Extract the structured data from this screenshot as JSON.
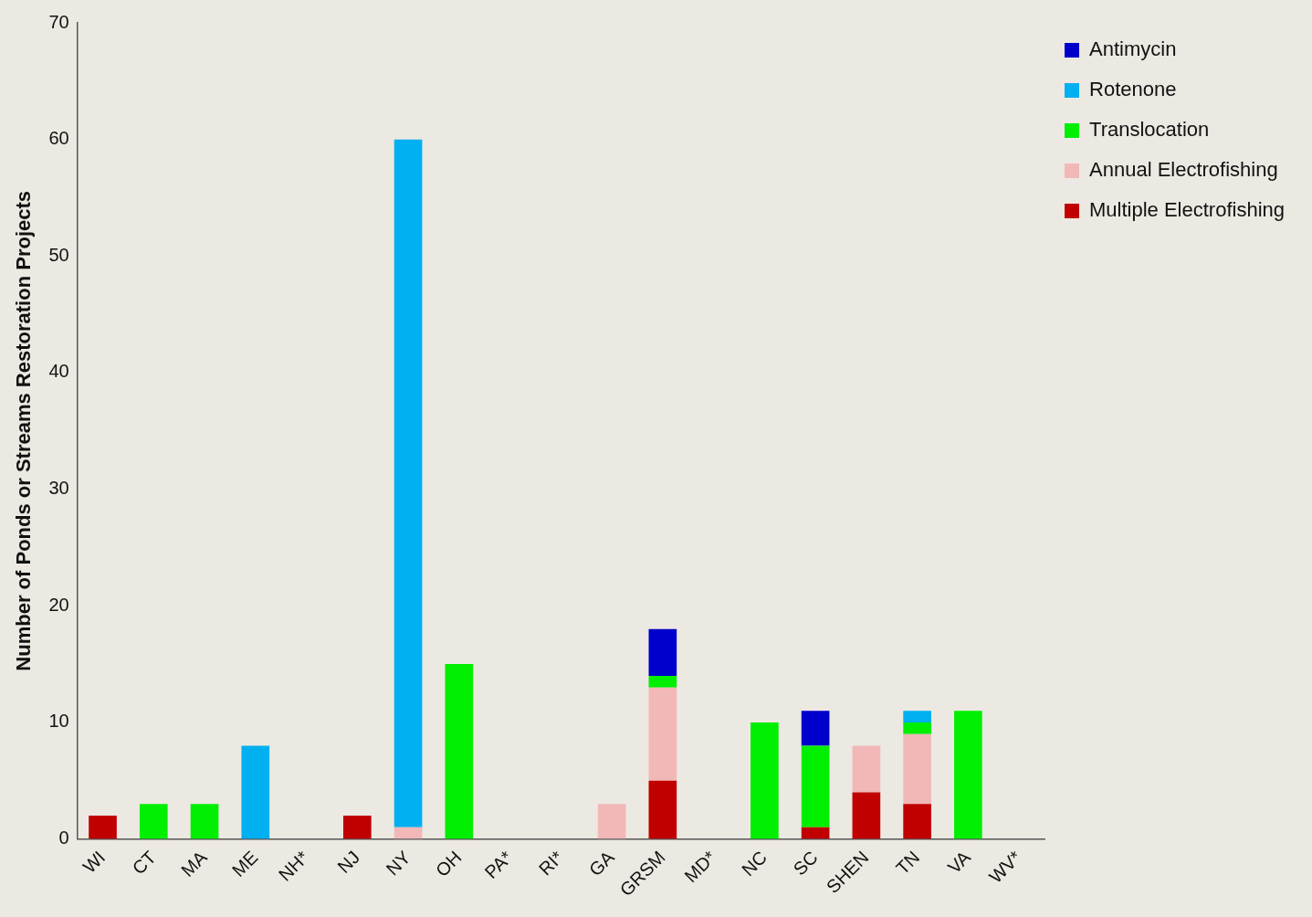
{
  "chart_data": {
    "type": "bar",
    "y_label": "Number of Ponds or Streams Restoration Projects",
    "categories": [
      "WI",
      "CT",
      "MA",
      "ME",
      "NH*",
      "NJ",
      "NY",
      "OH",
      "PA*",
      "RI*",
      "GA",
      "GRSM",
      "MD*",
      "NC",
      "SC",
      "SHEN",
      "TN",
      "VA",
      "WV*"
    ],
    "series": [
      {
        "name": "Multiple Electrofishing",
        "color": "#c00000",
        "values": [
          2,
          0,
          0,
          0,
          0,
          2,
          0,
          0,
          0,
          0,
          0,
          5,
          0,
          0,
          1,
          4,
          3,
          0,
          0
        ]
      },
      {
        "name": "Annual Electrofishing",
        "color": "#f2b8b8",
        "values": [
          0,
          0,
          0,
          0,
          0,
          0,
          1,
          0,
          0,
          0,
          3,
          8,
          0,
          0,
          0,
          4,
          6,
          0,
          0
        ]
      },
      {
        "name": "Translocation",
        "color": "#00ee00",
        "values": [
          0,
          3,
          3,
          0,
          0,
          0,
          0,
          15,
          0,
          0,
          0,
          1,
          0,
          10,
          7,
          0,
          1,
          11,
          0
        ]
      },
      {
        "name": "Rotenone",
        "color": "#00b0f0",
        "values": [
          0,
          0,
          0,
          8,
          0,
          0,
          59,
          0,
          0,
          0,
          0,
          0,
          0,
          0,
          0,
          0,
          1,
          0,
          0
        ]
      },
      {
        "name": "Antimycin",
        "color": "#0000cc",
        "values": [
          0,
          0,
          0,
          0,
          0,
          0,
          0,
          0,
          0,
          0,
          0,
          4,
          0,
          0,
          3,
          0,
          0,
          0,
          0
        ]
      }
    ],
    "stacked": true,
    "ylim": [
      0,
      70
    ],
    "yticks": [
      0,
      10,
      20,
      30,
      40,
      50,
      60,
      70
    ],
    "grid": false,
    "legend": "right"
  }
}
